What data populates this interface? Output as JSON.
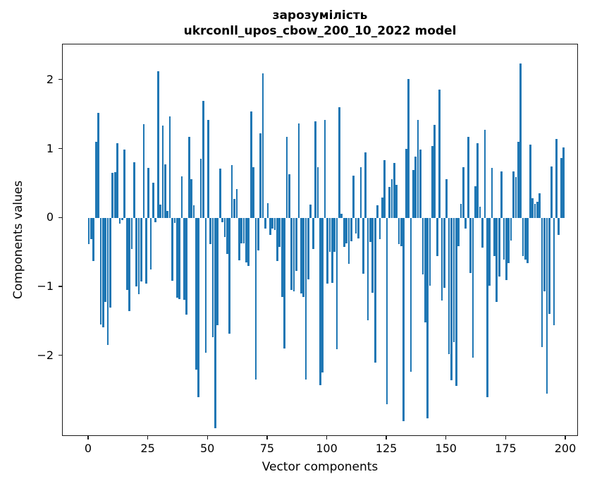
{
  "title": {
    "line1": "зарозумілість",
    "line2": "ukrconll_upos_cbow_200_10_2022 model"
  },
  "chart_data": {
    "type": "bar",
    "title": "зарозумілість",
    "subtitle": "ukrconll_upos_cbow_200_10_2022 model",
    "xlabel": "Vector components",
    "ylabel": "Components values",
    "bar_color": "#1f77b4",
    "axis_color": "#1a1a1a",
    "grid": false,
    "legend": null,
    "x_ticks": [
      0,
      25,
      50,
      75,
      100,
      125,
      150,
      175,
      200
    ],
    "y_ticks": [
      2,
      1,
      0,
      -1,
      -2
    ],
    "xlim": [
      -10.93,
      205.32
    ],
    "ylim": [
      -3.17,
      2.52
    ],
    "bar_width_fraction": 0.8,
    "values": [
      -0.38,
      -0.3,
      -0.62,
      1.11,
      1.53,
      -1.54,
      -1.58,
      -1.22,
      -1.84,
      -1.3,
      0.66,
      0.67,
      1.09,
      -0.08,
      -0.03,
      1.0,
      -1.04,
      -1.35,
      -0.45,
      0.81,
      -0.99,
      -1.1,
      -0.92,
      1.36,
      -0.95,
      0.73,
      -0.74,
      0.51,
      -0.06,
      2.13,
      0.2,
      1.34,
      0.78,
      0.1,
      1.48,
      -0.91,
      -0.07,
      -1.15,
      -1.17,
      0.61,
      -1.18,
      -1.4,
      1.18,
      0.57,
      0.19,
      -2.2,
      -2.6,
      0.86,
      1.7,
      -1.95,
      1.43,
      -0.38,
      -1.73,
      -3.05,
      -1.55,
      0.72,
      -0.06,
      -0.27,
      -0.52,
      -1.68,
      0.77,
      0.28,
      0.42,
      -0.61,
      -0.37,
      -0.37,
      -0.64,
      -0.69,
      1.55,
      0.74,
      -2.34,
      -0.47,
      1.23,
      2.1,
      -0.15,
      0.22,
      -0.24,
      -0.15,
      -0.17,
      -0.62,
      -0.42,
      -1.14,
      -1.89,
      1.18,
      0.64,
      -1.04,
      -1.06,
      -0.77,
      1.37,
      -1.09,
      -1.14,
      -2.34,
      -0.89,
      0.2,
      -0.45,
      1.4,
      0.74,
      -2.42,
      -2.24,
      1.42,
      -0.95,
      -0.49,
      -0.94,
      -0.49,
      -1.9,
      1.61,
      0.06,
      -0.42,
      -0.37,
      -0.66,
      -0.34,
      0.62,
      -0.22,
      -0.29,
      0.74,
      -0.81,
      0.95,
      -1.48,
      -0.35,
      -1.08,
      -2.1,
      0.19,
      -0.3,
      0.3,
      0.84,
      -2.7,
      0.45,
      0.57,
      0.8,
      0.48,
      -0.38,
      -0.41,
      -2.95,
      1.01,
      2.02,
      -2.23,
      0.7,
      0.89,
      1.42,
      1.0,
      -0.82,
      -1.51,
      -2.9,
      -0.98,
      1.05,
      1.35,
      -0.55,
      1.87,
      -1.2,
      -1.01,
      0.57,
      -1.97,
      -2.35,
      -1.8,
      -2.43,
      -0.41,
      0.21,
      0.74,
      -0.15,
      1.18,
      -0.8,
      -2.02,
      0.46,
      1.09,
      0.17,
      -0.43,
      1.28,
      -2.6,
      -0.98,
      0.73,
      -0.55,
      -1.22,
      -0.85,
      0.68,
      -0.6,
      -0.9,
      -0.65,
      -0.33,
      0.68,
      0.6,
      1.11,
      2.24,
      -0.55,
      -0.6,
      -0.65,
      1.07,
      0.29,
      0.21,
      0.24,
      0.36,
      -1.87,
      -1.06,
      -2.55,
      -1.39,
      0.75,
      -1.55,
      1.15,
      -0.24,
      0.87,
      1.03
    ]
  }
}
